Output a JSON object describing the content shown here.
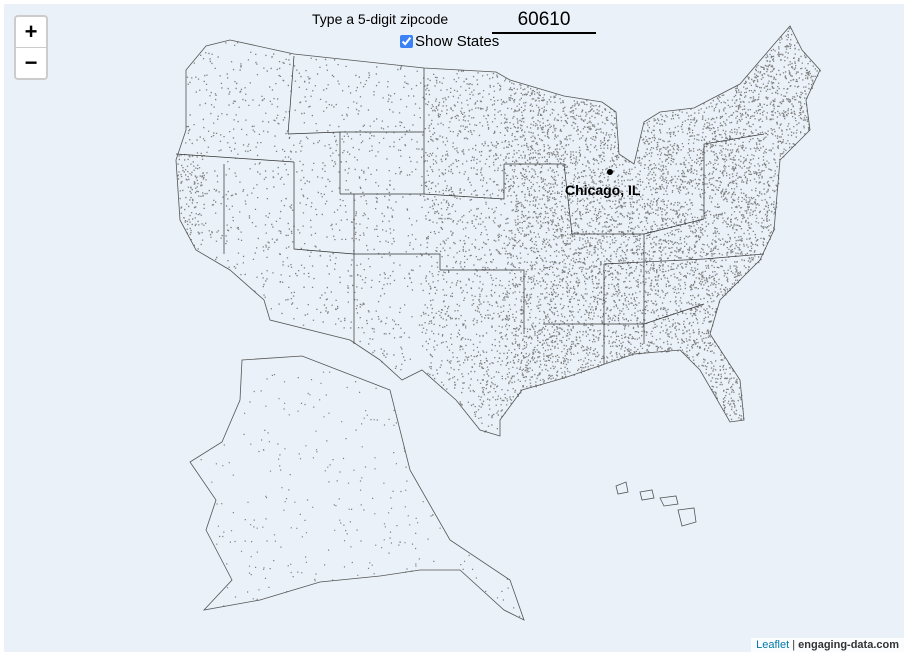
{
  "controls": {
    "zip_label": "Type a 5-digit zipcode",
    "zip_value": "60610",
    "show_states_label": "Show States",
    "show_states_checked": true
  },
  "zoom": {
    "in": "+",
    "out": "−"
  },
  "marker": {
    "label": "Chicago, IL"
  },
  "attribution": {
    "leaflet": "Leaflet",
    "separator": "|",
    "source": "engaging-data.com"
  },
  "colors": {
    "background": "#eaf1f8",
    "dots": "#808080",
    "borders": "#333333",
    "marker": "#000000"
  }
}
